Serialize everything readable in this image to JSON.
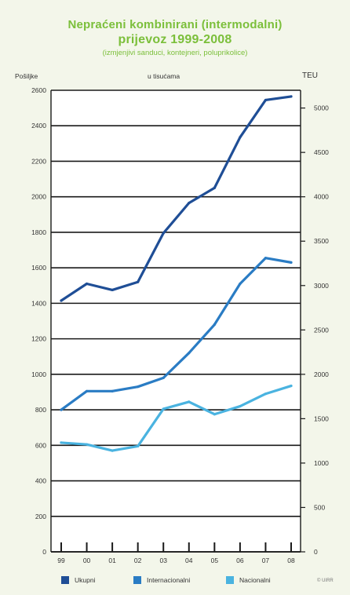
{
  "title_line1": "Nepraćeni kombinirani (intermodalni)",
  "title_line2": "prijevoz  1999-2008",
  "subtitle": "(izmjenjivi sanduci, kontejneri, poluprikolice)",
  "unit_left": "Pošiljke",
  "unit_center": "u tisućama",
  "unit_right": "TEU",
  "credit": "© UIRR",
  "colors": {
    "Ukupni": "#1f4e96",
    "Internacionalni": "#2a7cc4",
    "Nacionalni": "#4ab3e0",
    "grid": "#1a1a1a",
    "background": "#f3f6ea"
  },
  "chart_data": {
    "type": "line",
    "title": "Nepraćeni kombinirani (intermodalni) prijevoz 1999-2008",
    "subtitle": "(izmjenjivi sanduci, kontejneri, poluprikolice)",
    "categories": [
      "99",
      "00",
      "01",
      "02",
      "03",
      "04",
      "05",
      "06",
      "07",
      "08"
    ],
    "y_left": {
      "label": "Pošiljke",
      "range": [
        0,
        2600
      ],
      "ticks": [
        "0",
        "200",
        "400",
        "600",
        "800",
        "1000",
        "1200",
        "1400",
        "1600",
        "1800",
        "2000",
        "2200",
        "2400",
        "2600"
      ]
    },
    "y_right": {
      "label": "TEU",
      "range": [
        0,
        5200
      ],
      "ticks": [
        "0",
        "500",
        "1000",
        "1500",
        "2000",
        "2500",
        "3000",
        "3500",
        "4000",
        "4500",
        "5000"
      ]
    },
    "series": [
      {
        "name": "Ukupni",
        "values": [
          1415,
          1510,
          1475,
          1520,
          1795,
          1965,
          2050,
          2335,
          2545,
          2565
        ]
      },
      {
        "name": "Internacionalni",
        "values": [
          800,
          905,
          905,
          930,
          980,
          1120,
          1280,
          1510,
          1655,
          1630
        ]
      },
      {
        "name": "Nacionalni",
        "values": [
          615,
          605,
          570,
          595,
          805,
          845,
          775,
          820,
          890,
          935
        ]
      }
    ],
    "grid": true,
    "legend_position": "bottom"
  }
}
